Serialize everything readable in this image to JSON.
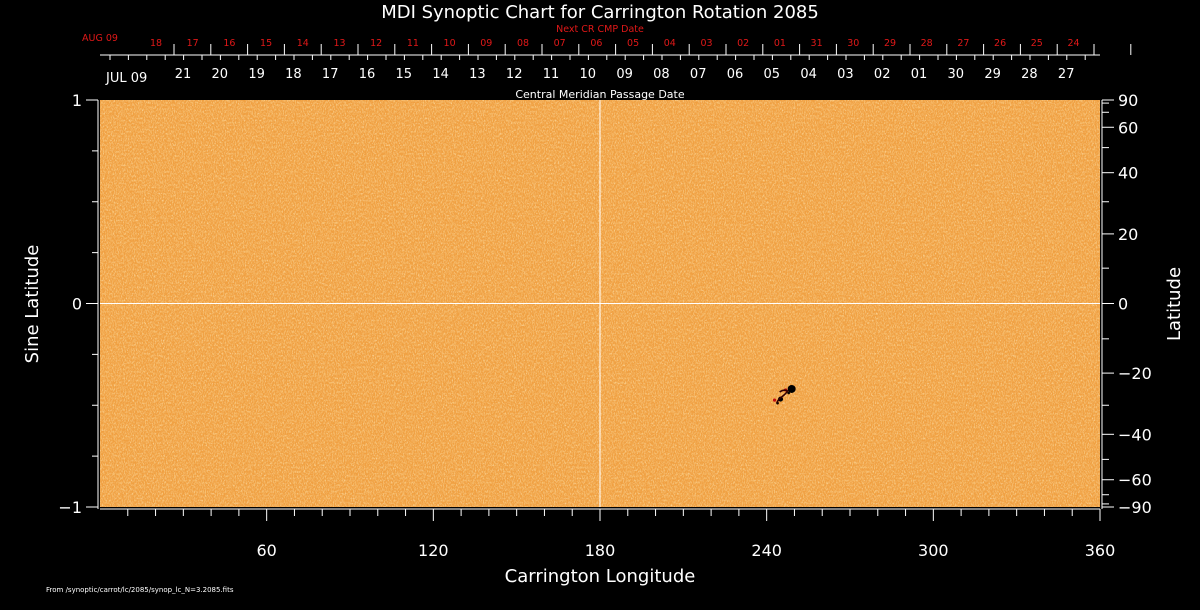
{
  "chart_data": {
    "type": "heatmap",
    "title": "MDI Synoptic Chart for Carrington Rotation 2085",
    "xlabel": "Carrington Longitude",
    "ylabel_left": "Sine Latitude",
    "ylabel_right": "Latitude",
    "xlim": [
      0,
      360
    ],
    "ylim": [
      -1,
      1
    ],
    "x_ticks": [
      60,
      120,
      180,
      240,
      300,
      360
    ],
    "y_ticks_left": [
      1,
      0,
      -1
    ],
    "y_ticks_left_labels": [
      "1",
      "0",
      "−1"
    ],
    "y_ticks_right": [
      90,
      60,
      40,
      20,
      0,
      -20,
      -40,
      -60,
      -90
    ],
    "y_ticks_right_labels": [
      "90",
      "60",
      "40",
      "20",
      "0",
      "−20",
      "−40",
      "−60",
      "−90"
    ],
    "gridlines": {
      "x": [
        180
      ],
      "y": [
        0
      ]
    },
    "top_axis_title": "Central Meridian Passage Date",
    "next_cr_title": "Next CR CMP Date",
    "next_cr_month": "AUG 09",
    "next_cr_dates": [
      "18",
      "17",
      "16",
      "15",
      "14",
      "13",
      "12",
      "11",
      "10",
      "09",
      "08",
      "07",
      "06",
      "05",
      "04",
      "03",
      "02",
      "01",
      "31",
      "30",
      "29",
      "28",
      "27",
      "26",
      "25",
      "24"
    ],
    "cmp_month": "JUL 09",
    "cmp_dates": [
      "21",
      "20",
      "19",
      "18",
      "17",
      "16",
      "15",
      "14",
      "13",
      "12",
      "11",
      "10",
      "09",
      "08",
      "07",
      "06",
      "05",
      "04",
      "03",
      "02",
      "01",
      "30",
      "29",
      "28",
      "27"
    ],
    "features": [
      {
        "label": "active region",
        "longitude": 249,
        "sine_latitude": -0.42
      },
      {
        "label": "active region",
        "longitude": 245,
        "sine_latitude": -0.47
      }
    ],
    "colors": {
      "background_field": "#f2a142",
      "negative": "#000000",
      "positive": "#ffffff",
      "label_red": "#e01818"
    }
  },
  "footer": "From /synoptic/carrot/lc/2085/synop_lc_N=3.2085.fits"
}
